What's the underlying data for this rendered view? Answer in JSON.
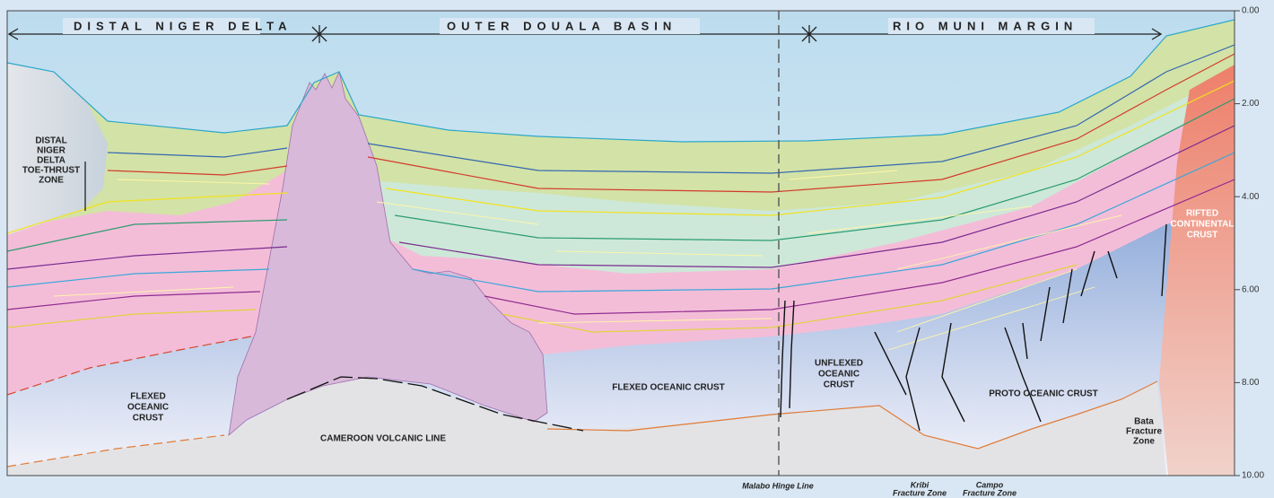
{
  "header": {
    "segments": [
      "DISTAL NIGER DELTA",
      "OUTER DOUALA BASIN",
      "RIO MUNI MARGIN"
    ]
  },
  "units": {
    "toe_thrust": [
      "DISTAL",
      "NIGER",
      "DELTA",
      "TOE-THRUST",
      "ZONE"
    ],
    "flexed_left": [
      "FLEXED",
      "OCEANIC",
      "CRUST"
    ],
    "volcanic_line": "CAMEROON VOLCANIC LINE",
    "flexed_middle": "FLEXED OCEANIC CRUST",
    "unflexed": [
      "UNFLEXED",
      "OCEANIC",
      "CRUST"
    ],
    "proto": "PROTO OCEANIC CRUST",
    "rifted": [
      "RIFTED",
      "CONTINENTAL",
      "CRUST"
    ],
    "bata": [
      "Bata",
      "Fracture",
      "Zone"
    ]
  },
  "features": {
    "malabo": "Malabo Hinge Line",
    "kribi": [
      "Kribi",
      "Fracture Zone"
    ],
    "campo": [
      "Campo",
      "Fracture Zone"
    ]
  },
  "depth_axis": {
    "ticks": [
      "0.00",
      "2.00",
      "4.00",
      "6.00",
      "8.00",
      "10.00"
    ]
  }
}
